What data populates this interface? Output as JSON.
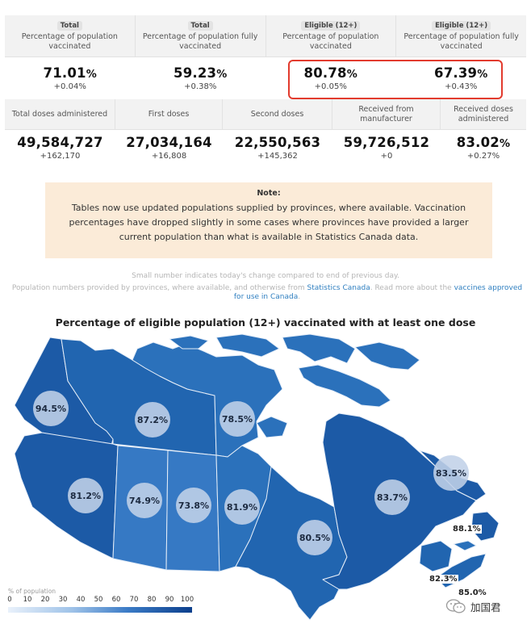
{
  "top_table": {
    "headers": [
      {
        "badge": "Total",
        "text": "Percentage of population vaccinated"
      },
      {
        "badge": "Total",
        "text": "Percentage of population fully vaccinated"
      },
      {
        "badge": "Eligible (12+)",
        "text": "Percentage of population vaccinated"
      },
      {
        "badge": "Eligible (12+)",
        "text": "Percentage of population fully vaccinated"
      }
    ],
    "values": [
      {
        "main": "71.01",
        "unit": "%",
        "change": "+0.04%"
      },
      {
        "main": "59.23",
        "unit": "%",
        "change": "+0.38%"
      },
      {
        "main": "80.78",
        "unit": "%",
        "change": "+0.05%"
      },
      {
        "main": "67.39",
        "unit": "%",
        "change": "+0.43%"
      }
    ]
  },
  "second_table": {
    "headers": [
      "Total doses administered",
      "First doses",
      "Second doses",
      "Received from manufacturer",
      "Received doses administered"
    ],
    "values": [
      {
        "main": "49,584,727",
        "unit": "",
        "change": "+162,170"
      },
      {
        "main": "27,034,164",
        "unit": "",
        "change": "+16,808"
      },
      {
        "main": "22,550,563",
        "unit": "",
        "change": "+145,362"
      },
      {
        "main": "59,726,512",
        "unit": "",
        "change": "+0"
      },
      {
        "main": "83.02",
        "unit": "%",
        "change": "+0.27%"
      }
    ]
  },
  "note": {
    "title": "Note:",
    "body": "Tables now use updated populations supplied by provinces, where available. Vaccination percentages have dropped slightly in some cases where provinces have provided a larger current population than what is available in Statistics Canada data."
  },
  "fine_print": {
    "line1": "Small number indicates today's change compared to end of previous day.",
    "line2_pre": "Population numbers provided by provinces, where available, and otherwise from ",
    "link1": "Statistics Canada",
    "line2_mid": ". Read more about the ",
    "link2": "vaccines approved for use in Canada",
    "line2_post": "."
  },
  "map": {
    "title": "Percentage of eligible population (12+) vaccinated with at least one dose",
    "regions": [
      {
        "id": "yukon",
        "value": "94.5%"
      },
      {
        "id": "northwest-territories",
        "value": "87.2%"
      },
      {
        "id": "nunavut",
        "value": "78.5%"
      },
      {
        "id": "british-columbia",
        "value": "81.2%"
      },
      {
        "id": "alberta",
        "value": "74.9%"
      },
      {
        "id": "saskatchewan",
        "value": "73.8%"
      },
      {
        "id": "manitoba",
        "value": "81.9%"
      },
      {
        "id": "ontario",
        "value": "80.5%"
      },
      {
        "id": "quebec",
        "value": "83.7%"
      },
      {
        "id": "newfoundland-labrador",
        "value": "83.5%"
      },
      {
        "id": "prince-edward-island",
        "value": "88.1%"
      },
      {
        "id": "new-brunswick",
        "value": "82.3%"
      },
      {
        "id": "nova-scotia",
        "value": "85.0%"
      }
    ],
    "legend_title": "% of population",
    "legend_ticks": [
      "0",
      "10",
      "20",
      "30",
      "40",
      "50",
      "60",
      "70",
      "80",
      "90",
      "100"
    ]
  },
  "watermark": "加国君",
  "colors": {
    "highlight": "#e23b2e",
    "note_bg": "#fbebd8",
    "map_dark": "#1c5aa6",
    "map_light": "#3c82cc",
    "link": "#2f7fc0"
  }
}
